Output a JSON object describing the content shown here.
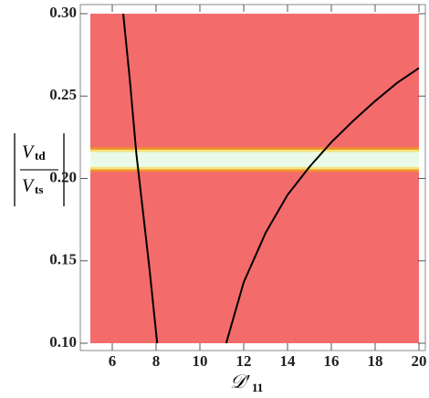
{
  "chart_data": {
    "type": "line",
    "x_label": {
      "main": "𝒟′",
      "sub": "11"
    },
    "y_label": {
      "numerator": "V",
      "numerator_sub": "td",
      "denominator": "V",
      "denominator_sub": "ts"
    },
    "xlim": [
      5,
      20
    ],
    "ylim": [
      0.1,
      0.3
    ],
    "xticks": [
      6,
      8,
      10,
      12,
      14,
      16,
      18,
      20
    ],
    "yticks": [
      {
        "value": 0.1,
        "label": "0.10"
      },
      0.15,
      {
        "value": 0.2,
        "label": "0.20"
      },
      0.25,
      {
        "value": 0.3,
        "label": "0.30"
      }
    ],
    "background_color": "#f46b6b",
    "bands": [
      {
        "ymin": 0.204,
        "ymax": 0.219,
        "color": "#f0902a"
      },
      {
        "ymin": 0.2055,
        "ymax": 0.2175,
        "color": "#f5e27a"
      },
      {
        "ymin": 0.207,
        "ymax": 0.216,
        "color": "#e9fbe8"
      }
    ],
    "series": [
      {
        "color": "#000000",
        "x": [
          6.5,
          6.8,
          7.1,
          7.4,
          7.7,
          8.05
        ],
        "values": [
          0.3,
          0.26,
          0.215,
          0.18,
          0.145,
          0.1
        ]
      },
      {
        "color": "#000000",
        "x": [
          11.2,
          12,
          13,
          14,
          15,
          16,
          17,
          18,
          19,
          20
        ],
        "values": [
          0.1,
          0.137,
          0.167,
          0.19,
          0.207,
          0.222,
          0.235,
          0.247,
          0.258,
          0.267
        ]
      }
    ]
  }
}
